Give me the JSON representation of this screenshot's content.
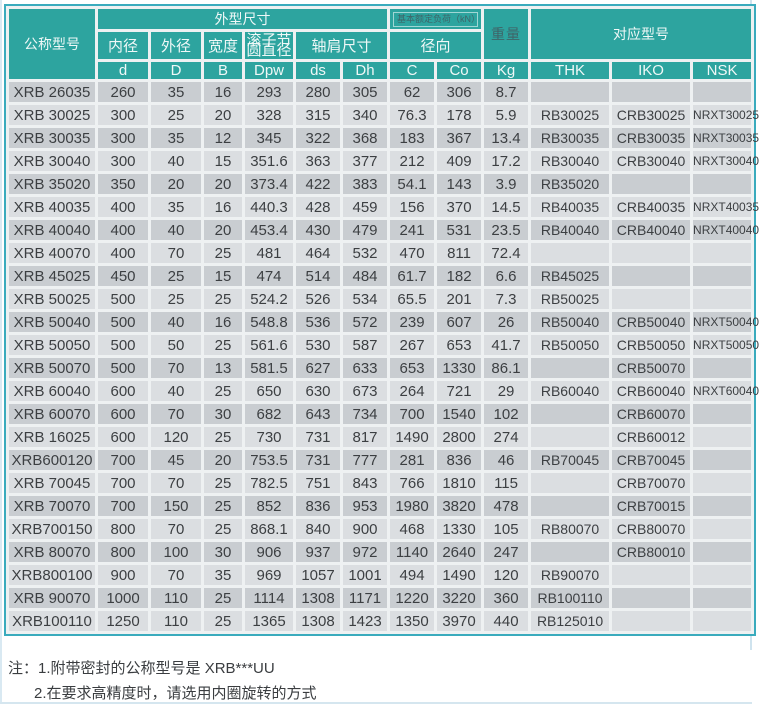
{
  "colors": {
    "header_teal": "#2da49f",
    "table_border": "#3aabbd",
    "row_dark": "#c9cdd1",
    "row_light": "#dbdee1",
    "text": "#3c3f42"
  },
  "table": {
    "headers": {
      "model": "公称型号",
      "dims_group": "外型尺寸",
      "load_group": "基本额定负荷（kN）",
      "weight": "重量",
      "match_group": "对应型号",
      "inner_dia": "内径",
      "outer_dia": "外径",
      "width": "宽度",
      "pitch_line1": "滚子节",
      "pitch_line2": "圆直径",
      "shoulder": "轴肩尺寸",
      "radial": "径向",
      "sub": [
        "d",
        "D",
        "B",
        "Dpw",
        "ds",
        "Dh",
        "C",
        "Co",
        "Kg",
        "THK",
        "IKO",
        "NSK"
      ]
    },
    "col_keys": [
      "model",
      "d",
      "D",
      "B",
      "Dpw",
      "ds",
      "Dh",
      "C",
      "Co",
      "Kg",
      "THK",
      "IKO",
      "NSK"
    ],
    "rows": [
      [
        "XRB 26035",
        "260",
        "35",
        "16",
        "293",
        "280",
        "305",
        "62",
        "306",
        "8.7",
        "",
        "",
        ""
      ],
      [
        "XRB 30025",
        "300",
        "25",
        "20",
        "328",
        "315",
        "340",
        "76.3",
        "178",
        "5.9",
        "RB30025",
        "CRB30025",
        "NRXT30025"
      ],
      [
        "XRB 30035",
        "300",
        "35",
        "12",
        "345",
        "322",
        "368",
        "183",
        "367",
        "13.4",
        "RB30035",
        "CRB30035",
        "NRXT30035"
      ],
      [
        "XRB 30040",
        "300",
        "40",
        "15",
        "351.6",
        "363",
        "377",
        "212",
        "409",
        "17.2",
        "RB30040",
        "CRB30040",
        "NRXT30040"
      ],
      [
        "XRB 35020",
        "350",
        "20",
        "20",
        "373.4",
        "422",
        "383",
        "54.1",
        "143",
        "3.9",
        "RB35020",
        "",
        ""
      ],
      [
        "XRB 40035",
        "400",
        "35",
        "16",
        "440.3",
        "428",
        "459",
        "156",
        "370",
        "14.5",
        "RB40035",
        "CRB40035",
        "NRXT40035"
      ],
      [
        "XRB 40040",
        "400",
        "40",
        "20",
        "453.4",
        "430",
        "479",
        "241",
        "531",
        "23.5",
        "RB40040",
        "CRB40040",
        "NRXT40040"
      ],
      [
        "XRB 40070",
        "400",
        "70",
        "25",
        "481",
        "464",
        "532",
        "470",
        "811",
        "72.4",
        "",
        "",
        ""
      ],
      [
        "XRB 45025",
        "450",
        "25",
        "15",
        "474",
        "514",
        "484",
        "61.7",
        "182",
        "6.6",
        "RB45025",
        "",
        ""
      ],
      [
        "XRB 50025",
        "500",
        "25",
        "25",
        "524.2",
        "526",
        "534",
        "65.5",
        "201",
        "7.3",
        "RB50025",
        "",
        ""
      ],
      [
        "XRB 50040",
        "500",
        "40",
        "16",
        "548.8",
        "536",
        "572",
        "239",
        "607",
        "26",
        "RB50040",
        "CRB50040",
        "NRXT50040"
      ],
      [
        "XRB 50050",
        "500",
        "50",
        "25",
        "561.6",
        "530",
        "587",
        "267",
        "653",
        "41.7",
        "RB50050",
        "CRB50050",
        "NRXT50050"
      ],
      [
        "XRB 50070",
        "500",
        "70",
        "13",
        "581.5",
        "627",
        "633",
        "653",
        "1330",
        "86.1",
        "",
        "CRB50070",
        ""
      ],
      [
        "XRB 60040",
        "600",
        "40",
        "25",
        "650",
        "630",
        "673",
        "264",
        "721",
        "29",
        "RB60040",
        "CRB60040",
        "NRXT60040"
      ],
      [
        "XRB 60070",
        "600",
        "70",
        "30",
        "682",
        "643",
        "734",
        "700",
        "1540",
        "102",
        "",
        "CRB60070",
        ""
      ],
      [
        "XRB 16025",
        "600",
        "120",
        "25",
        "730",
        "731",
        "817",
        "1490",
        "2800",
        "274",
        "",
        "CRB60012",
        ""
      ],
      [
        "XRB600120",
        "700",
        "45",
        "20",
        "753.5",
        "731",
        "777",
        "281",
        "836",
        "46",
        "RB70045",
        "CRB70045",
        ""
      ],
      [
        "XRB 70045",
        "700",
        "70",
        "25",
        "782.5",
        "751",
        "843",
        "766",
        "1810",
        "115",
        "",
        "CRB70070",
        ""
      ],
      [
        "XRB 70070",
        "700",
        "150",
        "25",
        "852",
        "836",
        "953",
        "1980",
        "3820",
        "478",
        "",
        "CRB70015",
        ""
      ],
      [
        "XRB700150",
        "800",
        "70",
        "25",
        "868.1",
        "840",
        "900",
        "468",
        "1330",
        "105",
        "RB80070",
        "CRB80070",
        ""
      ],
      [
        "XRB 80070",
        "800",
        "100",
        "30",
        "906",
        "937",
        "972",
        "1140",
        "2640",
        "247",
        "",
        "CRB80010",
        ""
      ],
      [
        "XRB800100",
        "900",
        "70",
        "35",
        "969",
        "1057",
        "1001",
        "494",
        "1490",
        "120",
        "RB90070",
        "",
        ""
      ],
      [
        "XRB 90070",
        "1000",
        "110",
        "25",
        "1114",
        "1308",
        "1171",
        "1220",
        "3220",
        "360",
        "RB100110",
        "",
        ""
      ],
      [
        "XRB100110",
        "1250",
        "110",
        "25",
        "1365",
        "1308",
        "1423",
        "1350",
        "3970",
        "440",
        "RB125010",
        "",
        ""
      ]
    ]
  },
  "notes": {
    "prefix": "注：",
    "line1": "1.附带密封的公称型号是 XRB***UU",
    "line2": "2.在要求高精度时，请选用内圈旋转的方式"
  }
}
